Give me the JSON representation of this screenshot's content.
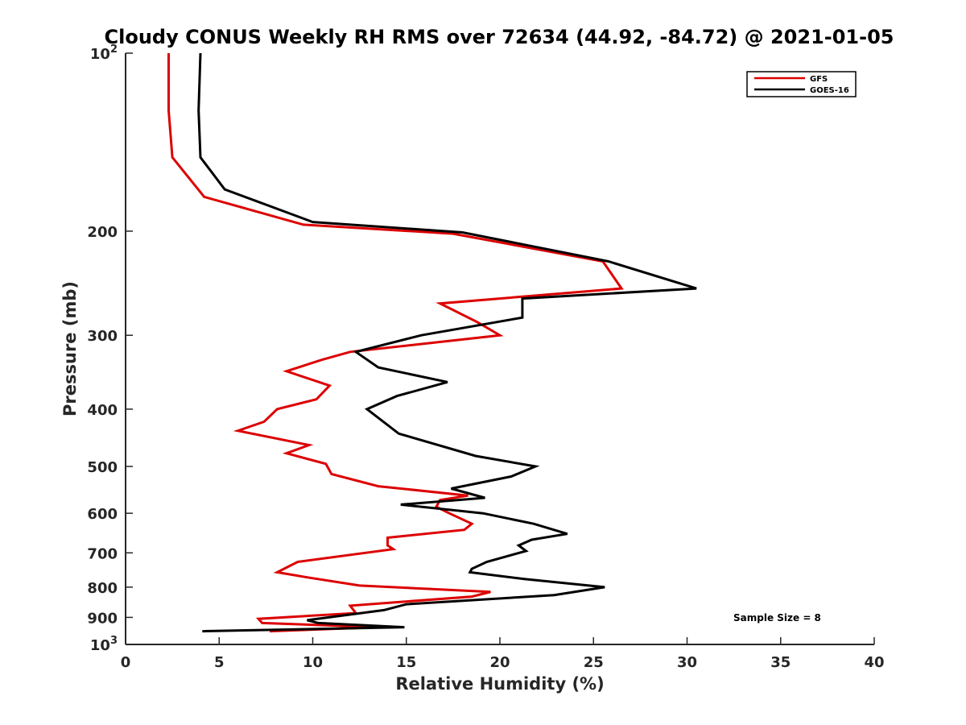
{
  "chart_data": {
    "type": "line",
    "title": "Cloudy CONUS Weekly RH RMS over 72634 (44.92, -84.72) @ 2021-01-05",
    "xlabel": "Relative Humidity (%)",
    "ylabel": "Pressure (mb)",
    "xlim": [
      0,
      40
    ],
    "ylim": [
      100,
      1000
    ],
    "yscale": "log",
    "y_reversed": true,
    "grid": false,
    "legend_position": "top-right",
    "annotation": "Sample Size = 8",
    "x_ticks": [
      0,
      5,
      10,
      15,
      20,
      25,
      30,
      35,
      40
    ],
    "y_ticks": [
      {
        "value": 100,
        "base": "10",
        "exp": "2"
      },
      {
        "value": 200,
        "label": "200"
      },
      {
        "value": 300,
        "label": "300"
      },
      {
        "value": 400,
        "label": "400"
      },
      {
        "value": 500,
        "label": "500"
      },
      {
        "value": 600,
        "label": "600"
      },
      {
        "value": 700,
        "label": "700"
      },
      {
        "value": 800,
        "label": "800"
      },
      {
        "value": 900,
        "label": "900"
      },
      {
        "value": 1000,
        "base": "10",
        "exp": "3"
      }
    ],
    "series": [
      {
        "name": "GFS",
        "color": "#dd0000",
        "points": [
          [
            2.3,
            100
          ],
          [
            2.3,
            125
          ],
          [
            2.5,
            150
          ],
          [
            4.2,
            175
          ],
          [
            9.5,
            195
          ],
          [
            17.5,
            202
          ],
          [
            25.5,
            225
          ],
          [
            26.5,
            250
          ],
          [
            16.8,
            265
          ],
          [
            18.8,
            285
          ],
          [
            20.0,
            300
          ],
          [
            12.0,
            320
          ],
          [
            10.5,
            330
          ],
          [
            8.6,
            345
          ],
          [
            10.9,
            365
          ],
          [
            10.2,
            385
          ],
          [
            8.1,
            400
          ],
          [
            7.4,
            420
          ],
          [
            6.0,
            435
          ],
          [
            9.8,
            460
          ],
          [
            8.6,
            475
          ],
          [
            10.7,
            495
          ],
          [
            11.0,
            515
          ],
          [
            13.5,
            540
          ],
          [
            18.3,
            560
          ],
          [
            16.8,
            570
          ],
          [
            16.6,
            585
          ],
          [
            17.3,
            600
          ],
          [
            18.5,
            625
          ],
          [
            18.1,
            640
          ],
          [
            14.0,
            660
          ],
          [
            14.0,
            680
          ],
          [
            14.3,
            690
          ],
          [
            9.2,
            725
          ],
          [
            8.1,
            755
          ],
          [
            9.7,
            770
          ],
          [
            12.5,
            795
          ],
          [
            19.5,
            815
          ],
          [
            18.5,
            830
          ],
          [
            12.0,
            860
          ],
          [
            12.3,
            885
          ],
          [
            7.1,
            905
          ],
          [
            7.3,
            920
          ],
          [
            13.5,
            935
          ],
          [
            7.7,
            950
          ]
        ]
      },
      {
        "name": "GOES-16",
        "color": "#000000",
        "points": [
          [
            4.0,
            100
          ],
          [
            3.9,
            125
          ],
          [
            4.0,
            150
          ],
          [
            5.3,
            170
          ],
          [
            10.0,
            193
          ],
          [
            18.0,
            201
          ],
          [
            25.8,
            225
          ],
          [
            30.5,
            250
          ],
          [
            21.2,
            260
          ],
          [
            21.2,
            280
          ],
          [
            15.8,
            300
          ],
          [
            12.3,
            320
          ],
          [
            13.5,
            340
          ],
          [
            17.2,
            360
          ],
          [
            14.5,
            380
          ],
          [
            12.9,
            400
          ],
          [
            14.6,
            440
          ],
          [
            18.7,
            480
          ],
          [
            21.9,
            500
          ],
          [
            20.6,
            520
          ],
          [
            17.4,
            545
          ],
          [
            19.2,
            565
          ],
          [
            14.7,
            580
          ],
          [
            19.1,
            600
          ],
          [
            21.8,
            625
          ],
          [
            23.6,
            650
          ],
          [
            21.7,
            665
          ],
          [
            21.0,
            680
          ],
          [
            21.4,
            695
          ],
          [
            19.3,
            725
          ],
          [
            18.5,
            745
          ],
          [
            18.4,
            755
          ],
          [
            21.3,
            775
          ],
          [
            25.6,
            800
          ],
          [
            22.9,
            825
          ],
          [
            15.0,
            855
          ],
          [
            13.8,
            875
          ],
          [
            9.7,
            910
          ],
          [
            10.3,
            920
          ],
          [
            14.9,
            935
          ],
          [
            4.1,
            950
          ]
        ]
      }
    ]
  }
}
